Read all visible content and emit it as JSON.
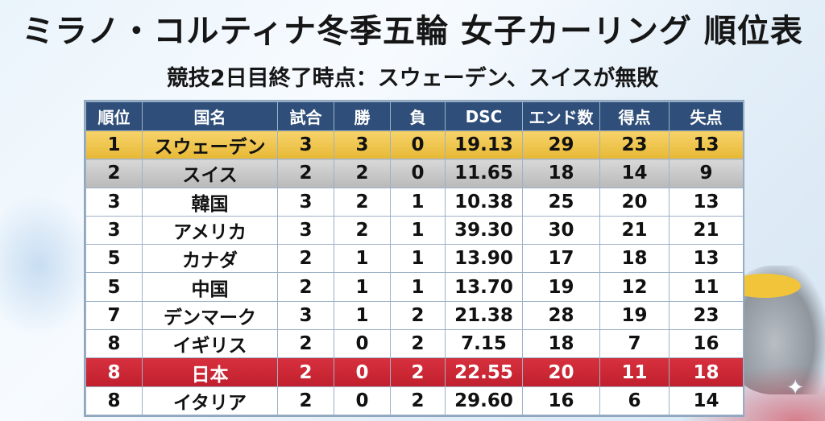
{
  "title": "ミラノ・コルティナ冬季五輪 女子カーリング 順位表",
  "subtitle": "競技2日目終了時点：スウェーデン、スイスが無敗",
  "table": {
    "headers": [
      "順位",
      "国名",
      "試合",
      "勝",
      "負",
      "DSC",
      "エンド数",
      "得点",
      "失点"
    ],
    "rows": [
      [
        "1",
        "スウェーデン",
        "3",
        "3",
        "0",
        "19.13",
        "29",
        "23",
        "13"
      ],
      [
        "2",
        "スイス",
        "2",
        "2",
        "0",
        "11.65",
        "18",
        "14",
        "9"
      ],
      [
        "3",
        "韓国",
        "3",
        "2",
        "1",
        "10.38",
        "25",
        "20",
        "13"
      ],
      [
        "3",
        "アメリカ",
        "3",
        "2",
        "1",
        "39.30",
        "30",
        "21",
        "21"
      ],
      [
        "5",
        "カナダ",
        "2",
        "1",
        "1",
        "13.90",
        "17",
        "18",
        "13"
      ],
      [
        "5",
        "中国",
        "2",
        "1",
        "1",
        "13.70",
        "19",
        "12",
        "11"
      ],
      [
        "7",
        "デンマーク",
        "3",
        "1",
        "2",
        "21.38",
        "28",
        "19",
        "23"
      ],
      [
        "8",
        "イギリス",
        "2",
        "0",
        "2",
        "7.15",
        "18",
        "7",
        "16"
      ],
      [
        "8",
        "日本",
        "2",
        "0",
        "2",
        "22.55",
        "20",
        "11",
        "18"
      ],
      [
        "8",
        "イタリア",
        "2",
        "0",
        "2",
        "29.60",
        "16",
        "6",
        "14"
      ]
    ]
  },
  "colors": {
    "header_bg": "#2f4f7a",
    "gold": "#e7b834",
    "silver": "#c4c4c4",
    "japan_highlight": "#c8232f"
  },
  "icons": {
    "decor": [
      "curling-stone-icon",
      "sparkle-icon"
    ]
  }
}
